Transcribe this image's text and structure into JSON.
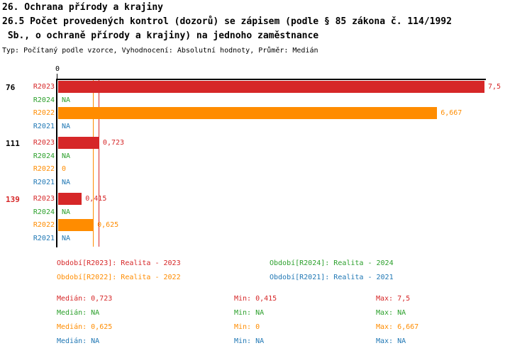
{
  "title": {
    "line1": "26. Ochrana přírody a krajiny",
    "line2": "26.5 Počet provedených kontrol (dozorů) se zápisem (podle § 85 zákona č. 114/1992",
    "line3": " Sb., o ochraně přírody a krajiny) na jednoho zaměstnance",
    "meta": "Typ: Počítaný podle vzorce, Vyhodnocení: Absolutní hodnoty, Průměr: Medián"
  },
  "colors": {
    "R2023": "#d62728",
    "R2024": "#2ca02c",
    "R2022": "#ff8c00",
    "R2021": "#1f77b4",
    "axis": "#000000"
  },
  "chart_data": {
    "type": "bar",
    "orientation": "horizontal",
    "x_axis": {
      "min": 0,
      "max": 7.5,
      "tick_labels": [
        "0"
      ],
      "grid": false
    },
    "series_order": [
      "R2023",
      "R2024",
      "R2022",
      "R2021"
    ],
    "median_lines": [
      {
        "series": "R2022",
        "value": 0.625,
        "color": "#ff8c00"
      },
      {
        "series": "R2023",
        "value": 0.723,
        "color": "#d62728"
      }
    ],
    "groups": [
      {
        "label": "76",
        "label_color": "#000000",
        "rows": [
          {
            "series": "R2023",
            "value": 7.5,
            "display": "7,5"
          },
          {
            "series": "R2024",
            "value": null,
            "display": "NA"
          },
          {
            "series": "R2022",
            "value": 6.667,
            "display": "6,667"
          },
          {
            "series": "R2021",
            "value": null,
            "display": "NA"
          }
        ]
      },
      {
        "label": "111",
        "label_color": "#000000",
        "rows": [
          {
            "series": "R2023",
            "value": 0.723,
            "display": "0,723"
          },
          {
            "series": "R2024",
            "value": null,
            "display": "NA"
          },
          {
            "series": "R2022",
            "value": 0,
            "display": "0"
          },
          {
            "series": "R2021",
            "value": null,
            "display": "NA"
          }
        ]
      },
      {
        "label": "139",
        "label_color": "#d62728",
        "rows": [
          {
            "series": "R2023",
            "value": 0.415,
            "display": "0,415"
          },
          {
            "series": "R2024",
            "value": null,
            "display": "NA"
          },
          {
            "series": "R2022",
            "value": 0.625,
            "display": "0,625"
          },
          {
            "series": "R2021",
            "value": null,
            "display": "NA"
          }
        ]
      }
    ]
  },
  "legend": [
    {
      "label": "Období[R2023]: Realita - 2023",
      "color": "#d62728"
    },
    {
      "label": "Období[R2024]: Realita - 2024",
      "color": "#2ca02c"
    },
    {
      "label": "Období[R2022]: Realita - 2022",
      "color": "#ff8c00"
    },
    {
      "label": "Období[R2021]: Realita - 2021",
      "color": "#1f77b4"
    }
  ],
  "stats": [
    {
      "color": "#d62728",
      "median": "Medián: 0,723",
      "min": "Min: 0,415",
      "max": "Max: 7,5"
    },
    {
      "color": "#2ca02c",
      "median": "Medián: NA",
      "min": "Min: NA",
      "max": "Max: NA"
    },
    {
      "color": "#ff8c00",
      "median": "Medián: 0,625",
      "min": "Min: 0",
      "max": "Max: 6,667"
    },
    {
      "color": "#1f77b4",
      "median": "Medián: NA",
      "min": "Min: NA",
      "max": "Max: NA"
    }
  ]
}
